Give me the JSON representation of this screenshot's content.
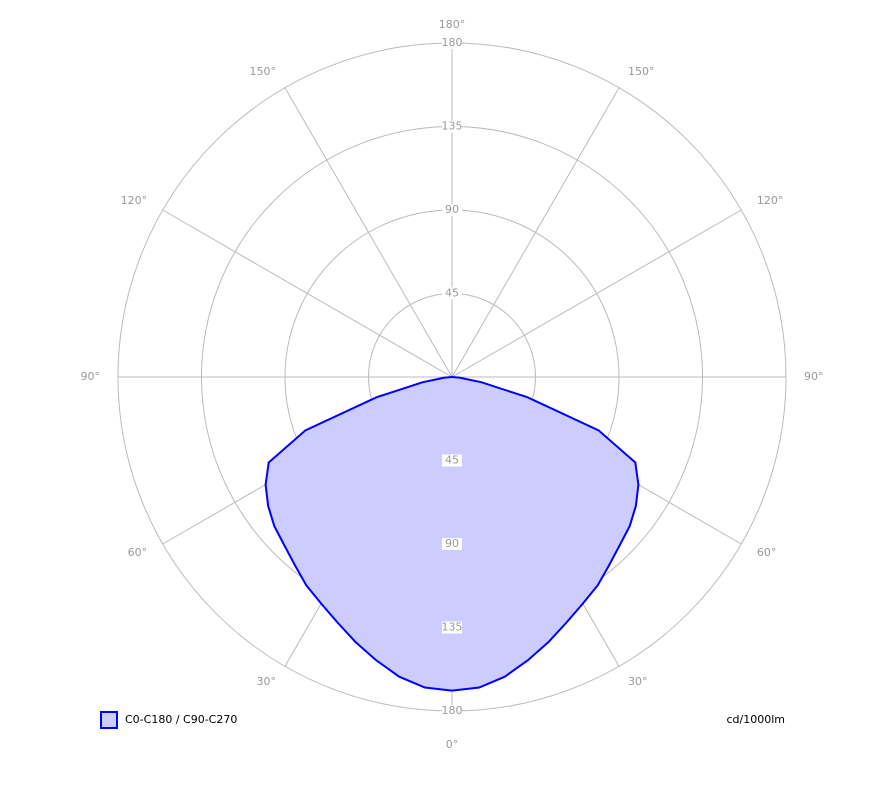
{
  "chart_data": {
    "type": "polar",
    "unit": "cd/1000lm",
    "x": [
      0,
      5,
      10,
      15,
      20,
      25,
      30,
      35,
      40,
      45,
      50,
      55,
      60,
      65,
      70,
      75,
      80,
      85,
      90
    ],
    "series": [
      {
        "name": "C0-C180 / C90-C270",
        "color": "#0000ff",
        "fill": "#ccccff",
        "values": [
          169,
          168,
          164,
          158,
          152,
          146,
          141,
          137,
          132,
          128,
          125,
          121,
          116,
          109,
          84,
          42,
          16,
          4,
          0
        ]
      }
    ],
    "rlim": [
      0,
      180
    ],
    "rticks": [
      45,
      90,
      135,
      180
    ],
    "angle_ticks": [
      {
        "value": 0,
        "label": "0°"
      },
      {
        "value": 30,
        "label": "30°"
      },
      {
        "value": 60,
        "label": "60°"
      },
      {
        "value": 90,
        "label": "90°"
      },
      {
        "value": 120,
        "label": "120°"
      },
      {
        "value": 150,
        "label": "150°"
      },
      {
        "value": 180,
        "label": "180°"
      }
    ],
    "grid": true
  }
}
